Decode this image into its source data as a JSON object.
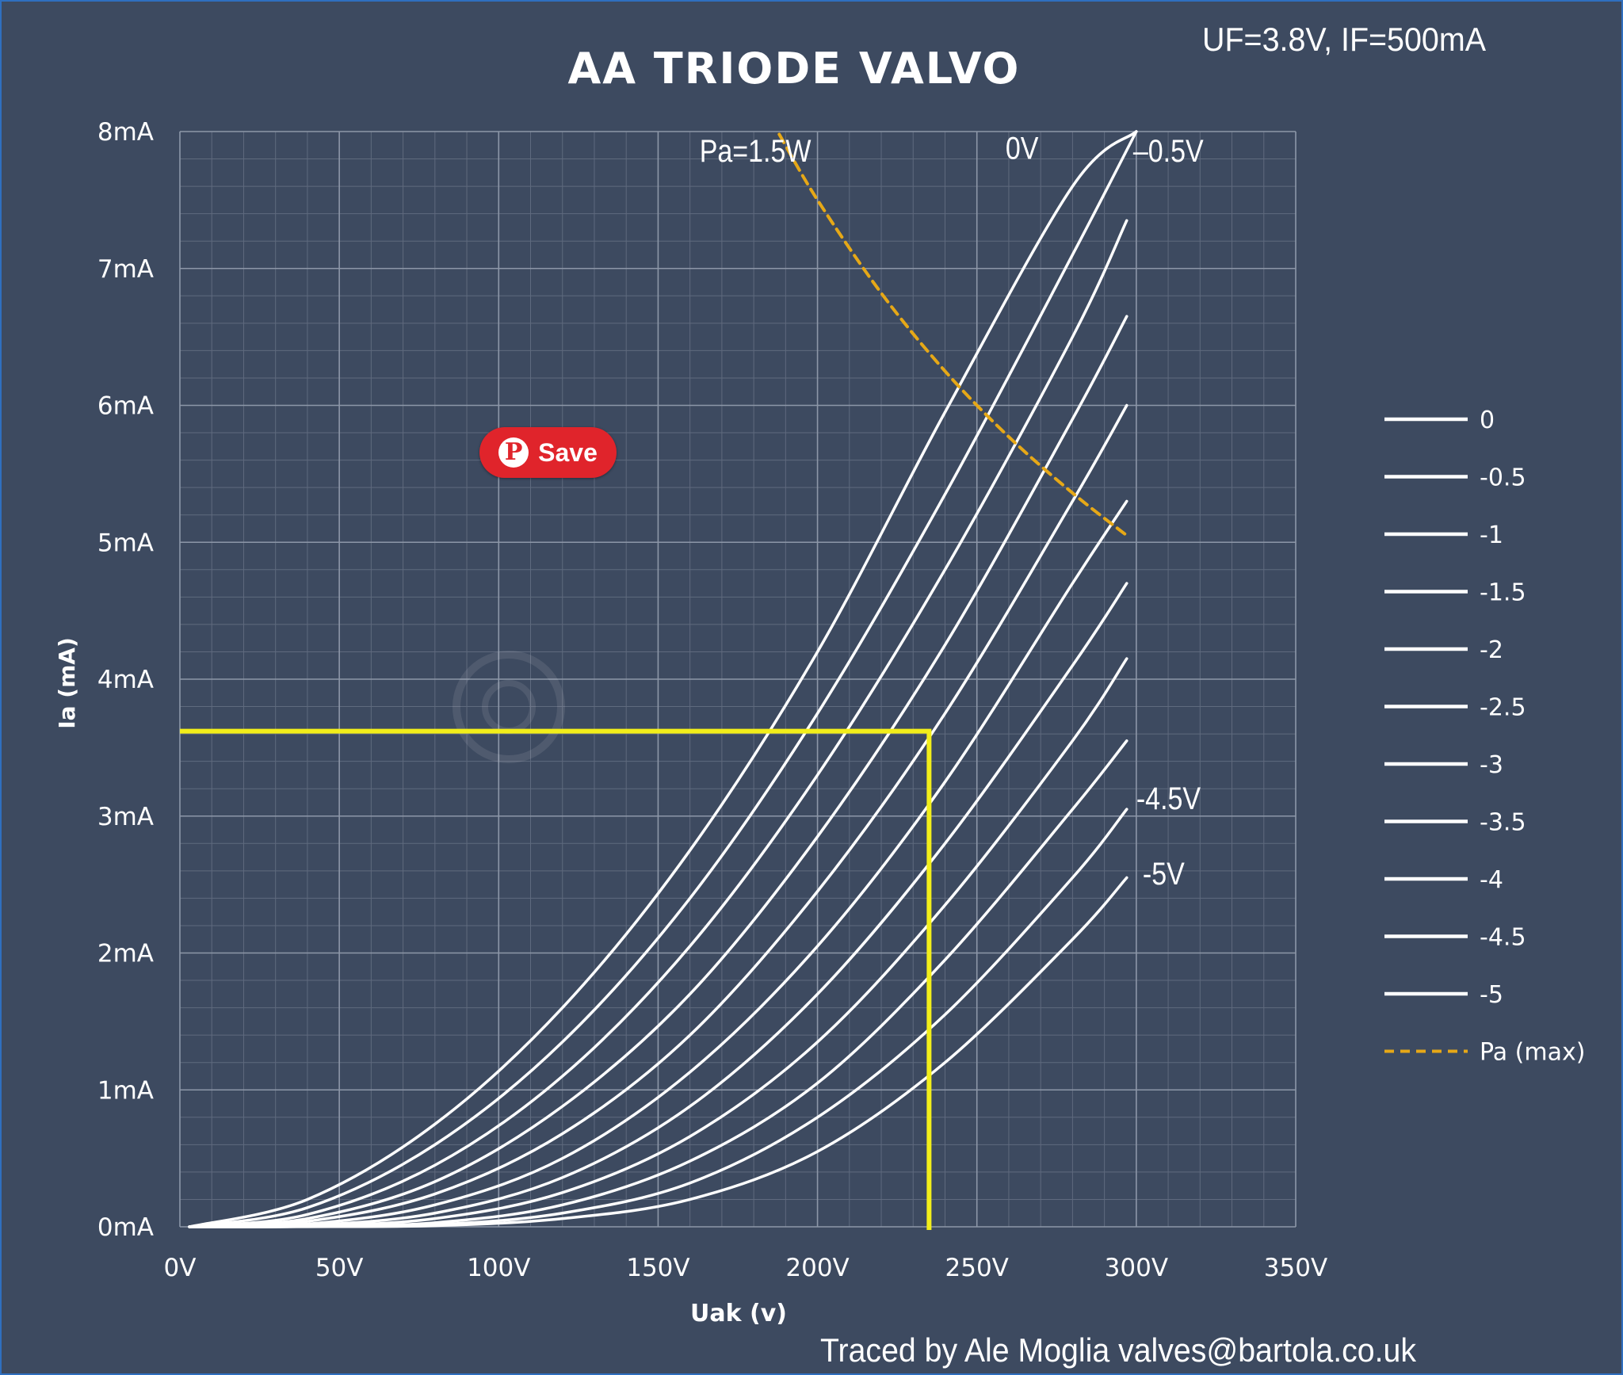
{
  "chart_data": {
    "type": "line",
    "title": "AA TRIODE VALVO",
    "subtitle": "UF=3.8V, IF=500mA",
    "xlabel": "Uak (v)",
    "ylabel": "Ia (mA)",
    "xlim": [
      0,
      350
    ],
    "ylim": [
      0,
      8
    ],
    "x_ticks": [
      "0V",
      "50V",
      "100V",
      "150V",
      "200V",
      "250V",
      "300V",
      "350V"
    ],
    "y_ticks": [
      "0mA",
      "1mA",
      "2mA",
      "3mA",
      "4mA",
      "5mA",
      "6mA",
      "7mA",
      "8mA"
    ],
    "grid": true,
    "legend_position": "right",
    "series": [
      {
        "name": "0",
        "x": [
          3,
          40,
          80,
          120,
          160,
          200,
          240,
          280,
          300
        ],
        "y": [
          0,
          0.2,
          0.75,
          1.6,
          2.75,
          4.2,
          5.95,
          7.6,
          8.0
        ]
      },
      {
        "name": "-0.5",
        "x": [
          3,
          40,
          80,
          120,
          160,
          200,
          240,
          280,
          300
        ],
        "y": [
          0,
          0.14,
          0.6,
          1.35,
          2.4,
          3.75,
          5.35,
          7.1,
          8.0
        ]
      },
      {
        "name": "-1",
        "x": [
          3,
          40,
          80,
          120,
          160,
          200,
          240,
          280,
          297
        ],
        "y": [
          0,
          0.09,
          0.45,
          1.1,
          2.05,
          3.3,
          4.8,
          6.5,
          7.35
        ]
      },
      {
        "name": "-1.5",
        "x": [
          3,
          40,
          80,
          120,
          160,
          200,
          240,
          280,
          297
        ],
        "y": [
          0,
          0.06,
          0.33,
          0.88,
          1.7,
          2.85,
          4.25,
          5.9,
          6.65
        ]
      },
      {
        "name": "-2",
        "x": [
          3,
          40,
          80,
          120,
          160,
          200,
          240,
          280,
          297
        ],
        "y": [
          0,
          0.04,
          0.24,
          0.68,
          1.4,
          2.45,
          3.75,
          5.3,
          6.0
        ]
      },
      {
        "name": "-2.5",
        "x": [
          3,
          40,
          80,
          120,
          160,
          200,
          240,
          280,
          297
        ],
        "y": [
          0,
          0.02,
          0.16,
          0.5,
          1.13,
          2.05,
          3.25,
          4.7,
          5.3
        ]
      },
      {
        "name": "-3",
        "x": [
          3,
          40,
          80,
          120,
          160,
          200,
          240,
          280,
          297
        ],
        "y": [
          0,
          0.01,
          0.1,
          0.36,
          0.88,
          1.7,
          2.8,
          4.1,
          4.7
        ]
      },
      {
        "name": "-3.5",
        "x": [
          3,
          40,
          80,
          120,
          160,
          200,
          240,
          280,
          297
        ],
        "y": [
          0,
          0.005,
          0.06,
          0.25,
          0.66,
          1.35,
          2.35,
          3.55,
          4.15
        ]
      },
      {
        "name": "-4",
        "x": [
          3,
          40,
          80,
          120,
          160,
          200,
          240,
          280,
          297
        ],
        "y": [
          0,
          0.003,
          0.03,
          0.16,
          0.48,
          1.05,
          1.95,
          3.05,
          3.55
        ]
      },
      {
        "name": "-4.5",
        "x": [
          3,
          40,
          80,
          120,
          160,
          200,
          240,
          280,
          297
        ],
        "y": [
          0,
          0.002,
          0.015,
          0.1,
          0.32,
          0.8,
          1.55,
          2.55,
          3.05
        ]
      },
      {
        "name": "-5",
        "x": [
          3,
          40,
          80,
          120,
          160,
          200,
          240,
          280,
          297
        ],
        "y": [
          0,
          0.001,
          0.008,
          0.06,
          0.2,
          0.55,
          1.2,
          2.1,
          2.55
        ]
      },
      {
        "name": "Pa (max)",
        "style": "dashed",
        "x": [
          188,
          200,
          220,
          240,
          260,
          280,
          297
        ],
        "y": [
          7.98,
          7.5,
          6.82,
          6.25,
          5.77,
          5.36,
          5.05
        ]
      }
    ],
    "annotations": [
      {
        "text": "Pa=1.5W",
        "x": 163,
        "y": 7.78
      },
      {
        "text": "0V",
        "x": 259,
        "y": 7.8
      },
      {
        "text": "–0.5V",
        "x": 299,
        "y": 7.78
      },
      {
        "text": "-4.5V",
        "x": 300,
        "y": 3.05
      },
      {
        "text": "-5V",
        "x": 302,
        "y": 2.5
      }
    ],
    "marker_lines": {
      "x": 235,
      "y": 3.62
    },
    "footer": "Traced by Ale  Moglia valves@bartola.co.uk"
  },
  "colors": {
    "background": "#3d4a60",
    "curves": "#ffffff",
    "pa_max": "#e6a817",
    "marker": "#f2ee1a",
    "grid_major": "#8d97a8",
    "grid_minor": "#5f6a7e"
  },
  "pin_save": {
    "label": "Save",
    "icon": "pinterest-icon"
  }
}
